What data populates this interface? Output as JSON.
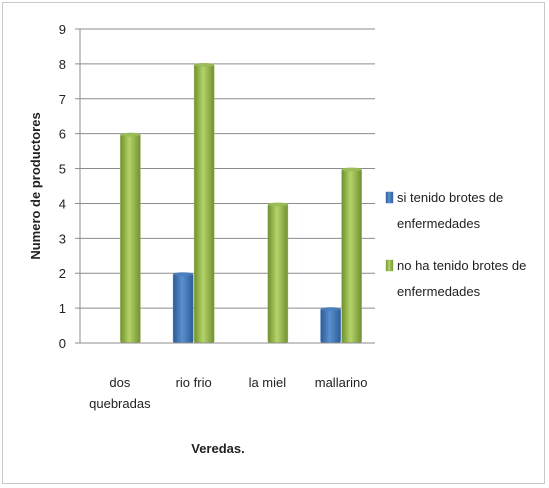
{
  "chart_data": {
    "type": "bar",
    "categories": [
      [
        "dos",
        "quebradas"
      ],
      [
        "rio frio"
      ],
      [
        "la miel"
      ],
      [
        "mallarino"
      ]
    ],
    "series": [
      {
        "name": [
          "si tenido brotes de",
          "enfermedades"
        ],
        "values": [
          0,
          2,
          0,
          1
        ],
        "color": "#4a7ebb"
      },
      {
        "name": [
          "no ha tenido brotes de",
          "enfermedades"
        ],
        "values": [
          6,
          8,
          4,
          5
        ],
        "color": "#9bbb59"
      }
    ],
    "title": "",
    "xlabel": "Veredas.",
    "ylabel": "Numero de productores",
    "ylim": [
      0,
      9
    ],
    "yticks": [
      0,
      1,
      2,
      3,
      4,
      5,
      6,
      7,
      8,
      9
    ],
    "grid": true,
    "legend_position": "right"
  }
}
